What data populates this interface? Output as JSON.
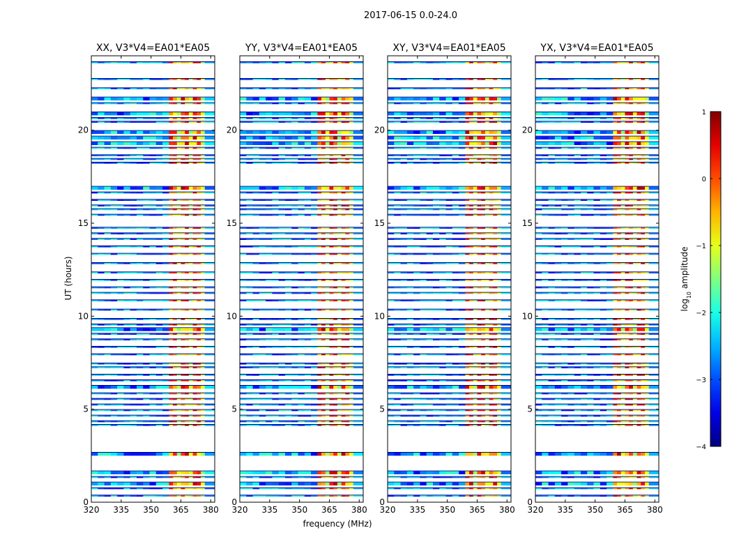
{
  "chart_data": {
    "type": "heatmap",
    "suptitle": "2017-06-15 0.0-24.0",
    "xlabel": "frequency (MHz)",
    "ylabel": "UT (hours)",
    "xlim": [
      320,
      382
    ],
    "ylim": [
      0,
      24
    ],
    "xticks": [
      320,
      335,
      350,
      365,
      380
    ],
    "yticks": [
      0,
      5,
      10,
      15,
      20
    ],
    "panels": [
      {
        "name": "xx",
        "title": "XX, V3*V4=EA01*EA05"
      },
      {
        "name": "yy",
        "title": "YY, V3*V4=EA01*EA05"
      },
      {
        "name": "xy",
        "title": "XY, V3*V4=EA01*EA05"
      },
      {
        "name": "yx",
        "title": "YX, V3*V4=EA01*EA05"
      }
    ],
    "band_edge_mhz": 359,
    "bright_band_mhz": [
      359,
      377
    ],
    "scan_bands_ut_hours": [
      [
        23.6,
        23.7
      ],
      [
        22.7,
        22.8
      ],
      [
        22.2,
        22.3
      ],
      [
        21.6,
        21.8
      ],
      [
        21.4,
        21.5
      ],
      [
        20.8,
        21.0
      ],
      [
        20.6,
        20.7
      ],
      [
        20.4,
        20.5
      ],
      [
        19.8,
        20.0
      ],
      [
        19.5,
        19.7
      ],
      [
        19.2,
        19.4
      ],
      [
        19.0,
        19.1
      ],
      [
        18.6,
        18.7
      ],
      [
        18.4,
        18.5
      ],
      [
        18.2,
        18.3
      ],
      [
        16.8,
        17.0
      ],
      [
        16.6,
        16.7
      ],
      [
        16.2,
        16.3
      ],
      [
        15.9,
        16.0
      ],
      [
        15.7,
        15.8
      ],
      [
        15.4,
        15.5
      ],
      [
        14.7,
        14.8
      ],
      [
        14.4,
        14.5
      ],
      [
        14.1,
        14.2
      ],
      [
        13.7,
        13.8
      ],
      [
        13.3,
        13.4
      ],
      [
        12.8,
        12.9
      ],
      [
        12.3,
        12.4
      ],
      [
        11.9,
        12.0
      ],
      [
        11.5,
        11.6
      ],
      [
        11.2,
        11.3
      ],
      [
        10.8,
        10.9
      ],
      [
        10.3,
        10.4
      ],
      [
        9.8,
        9.9
      ],
      [
        9.5,
        9.6
      ],
      [
        9.2,
        9.4
      ],
      [
        9.0,
        9.1
      ],
      [
        8.7,
        8.8
      ],
      [
        8.3,
        8.4
      ],
      [
        7.9,
        8.0
      ],
      [
        7.4,
        7.5
      ],
      [
        7.2,
        7.3
      ],
      [
        6.8,
        6.9
      ],
      [
        6.5,
        6.6
      ],
      [
        6.1,
        6.3
      ],
      [
        5.8,
        5.9
      ],
      [
        5.5,
        5.6
      ],
      [
        5.2,
        5.3
      ],
      [
        4.9,
        5.0
      ],
      [
        4.6,
        4.7
      ],
      [
        4.3,
        4.4
      ],
      [
        4.1,
        4.2
      ],
      [
        2.5,
        2.7
      ],
      [
        1.5,
        1.7
      ],
      [
        1.3,
        1.4
      ],
      [
        0.9,
        1.1
      ],
      [
        0.7,
        0.8
      ],
      [
        0.3,
        0.4
      ]
    ],
    "colorbar": {
      "label": "log",
      "label_sub": "10",
      "label_rest": " amplitude",
      "min": -4,
      "max": 1,
      "ticks": [
        "1",
        "0",
        "−1",
        "−2",
        "−3",
        "−4"
      ],
      "colormap": "jet"
    }
  }
}
